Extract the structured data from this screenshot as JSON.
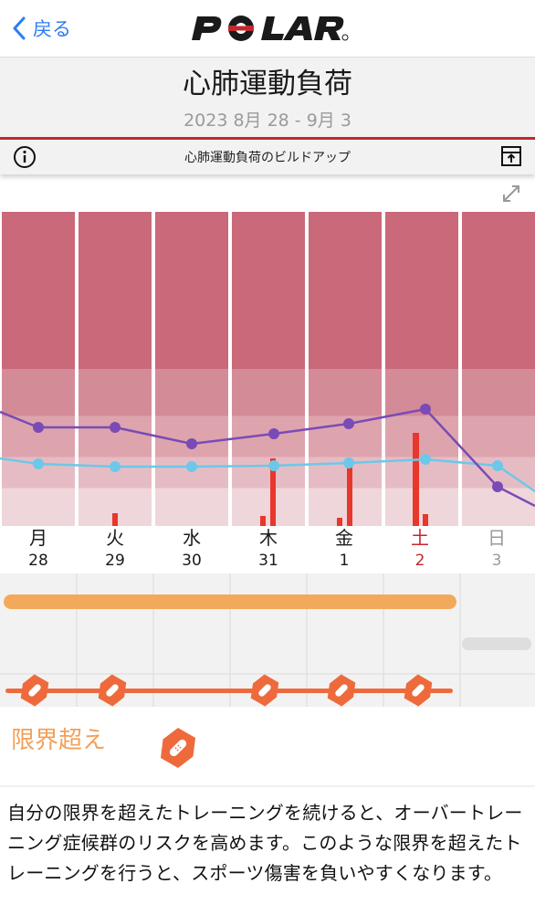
{
  "nav": {
    "back_label": "戻る",
    "logo_text": "POLAR"
  },
  "header": {
    "title": "心肺運動負荷",
    "date_range": "2023 8月 28 - 9月 3"
  },
  "toolbar": {
    "label": "心肺運動負荷のビルドアップ",
    "info_icon": "info-icon",
    "export_icon": "export-icon",
    "expand_icon": "expand-icon"
  },
  "days": [
    {
      "weekday": "月",
      "date": "28",
      "color": "#1a1a1a"
    },
    {
      "weekday": "火",
      "date": "29",
      "color": "#1a1a1a"
    },
    {
      "weekday": "水",
      "date": "30",
      "color": "#1a1a1a"
    },
    {
      "weekday": "木",
      "date": "31",
      "color": "#1a1a1a"
    },
    {
      "weekday": "金",
      "date": "1",
      "color": "#1a1a1a"
    },
    {
      "weekday": "土",
      "date": "2",
      "color": "#c3282f"
    },
    {
      "weekday": "日",
      "date": "3",
      "color": "#9a9a9a"
    }
  ],
  "colors": {
    "accent": "#c3282f",
    "strain_line": "#7a4bb5",
    "tolerance_line": "#6cc8e8",
    "training_bar": "#e8372b",
    "status_bar": "#f3a95c",
    "status_icon": "#ee6a3c"
  },
  "status": {
    "title": "限界超え",
    "icon": "bandage-icon"
  },
  "description": "自分の限界を超えたトレーニングを続けると、オーバートレーニング症候群のリスクを高めます。このような限界を超えたトレーニングを行うと、スポーツ傷害を負いやすくなります。"
}
